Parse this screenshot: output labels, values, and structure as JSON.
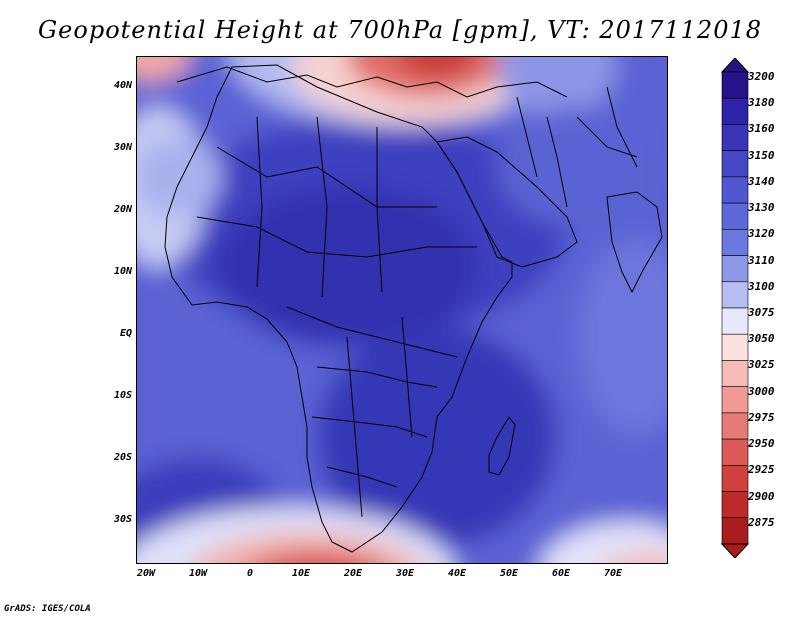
{
  "title": "Geopotential Height at 700hPa [gpm], VT: 2017112018",
  "credit": "GrADS: IGES/COLA",
  "lat_labels": [
    "40N",
    "30N",
    "20N",
    "10N",
    "EQ",
    "10S",
    "20S",
    "30S"
  ],
  "lon_labels": [
    "20W",
    "10W",
    "0",
    "10E",
    "20E",
    "30E",
    "40E",
    "50E",
    "60E",
    "70E"
  ],
  "colorbar": {
    "levels": [
      "3200",
      "3180",
      "3160",
      "3150",
      "3140",
      "3130",
      "3120",
      "3110",
      "3100",
      "3075",
      "3050",
      "3025",
      "3000",
      "2975",
      "2950",
      "2925",
      "2900",
      "2875"
    ],
    "colors": [
      "#26138a",
      "#2e23a6",
      "#3a35b8",
      "#4547c4",
      "#5158cf",
      "#5d69d8",
      "#6b79df",
      "#8d98e6",
      "#b7bdf0",
      "#e7e8fb",
      "#fbe2e0",
      "#f6bdb8",
      "#ef9a94",
      "#e67a74",
      "#dc5a56",
      "#d0413e",
      "#bc2a2a",
      "#a81d1e"
    ]
  }
}
